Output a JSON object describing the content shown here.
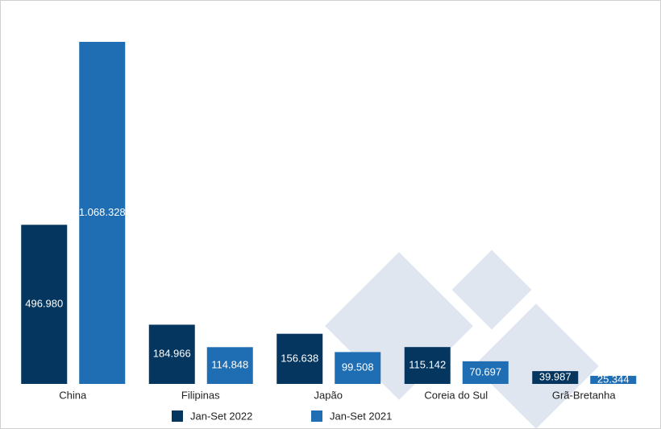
{
  "chart_data": {
    "type": "bar",
    "categories": [
      "China",
      "Filipinas",
      "Japão",
      "Coreia do Sul",
      "Grã-Bretanha"
    ],
    "series": [
      {
        "name": "Jan-Set 2022",
        "color": "#04365f",
        "values": [
          496980,
          184966,
          156638,
          115142,
          39987
        ],
        "value_labels": [
          "496.980",
          "184.966",
          "156.638",
          "115.142",
          "39.987"
        ]
      },
      {
        "name": "Jan-Set 2021",
        "color": "#1f6db3",
        "values": [
          1068328,
          114848,
          99508,
          70697,
          25344
        ],
        "value_labels": [
          "1.068.328",
          "114.848",
          "99.508",
          "70.697",
          "25.344"
        ]
      }
    ]
  }
}
